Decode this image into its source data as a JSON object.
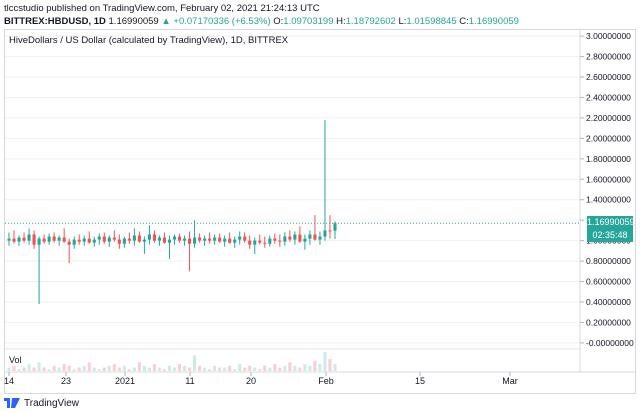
{
  "header": {
    "publish_line": "tlccstudio published on TradingView.com, February 02, 2021 21:24:13 UTC",
    "symbol": "BITTREX:HBDUSD, 1D",
    "last": "1.16990059",
    "change": "+0.07170336 (+6.53%)",
    "o_label": "O:",
    "o": "1.09703199",
    "h_label": "H:",
    "h": "1.18792602",
    "l_label": "L:",
    "l": "1.01598845",
    "c_label": "C:",
    "c": "1.16990059"
  },
  "chart_title": "HiveDollars / US Dollar (calculated by TradingView), 1D, BITTREX",
  "volume_label": "Vol",
  "price_tag": "1.16990059",
  "countdown_tag": "02:35:48",
  "footer": {
    "brand": "TradingView"
  },
  "colors": {
    "up": "#26a69a",
    "down": "#ef5350",
    "grid": "#eef0f3",
    "axis_text": "#131722",
    "vol_up": "#cdebe7",
    "vol_down": "#f8d0cf"
  },
  "chart_data": {
    "type": "candlestick",
    "title": "HiveDollars / US Dollar (calculated by TradingView), 1D, BITTREX",
    "y_axis_ticks": [
      "3.00000000",
      "2.80000000",
      "2.60000000",
      "2.40000000",
      "2.20000000",
      "2.00000000",
      "1.80000000",
      "1.60000000",
      "1.40000000",
      "1.20000000",
      "1.00000000",
      "0.80000000",
      "0.60000000",
      "0.40000000",
      "0.20000000",
      "-0.00000000"
    ],
    "y_tick_values": [
      3.0,
      2.8,
      2.6,
      2.4,
      2.2,
      2.0,
      1.8,
      1.6,
      1.4,
      1.2,
      1.0,
      0.8,
      0.6,
      0.4,
      0.2,
      0.0
    ],
    "x_axis_ticks": [
      "14",
      "23",
      "2021",
      "11",
      "20",
      "Feb",
      "15",
      "Mar"
    ],
    "ylim": [
      -0.05,
      3.05
    ],
    "current_price": 1.1699,
    "candles": [
      {
        "o": 1.0,
        "h": 1.08,
        "l": 0.95,
        "c": 1.02
      },
      {
        "o": 1.02,
        "h": 1.1,
        "l": 0.97,
        "c": 0.99
      },
      {
        "o": 0.99,
        "h": 1.05,
        "l": 0.95,
        "c": 1.03
      },
      {
        "o": 1.03,
        "h": 1.08,
        "l": 0.98,
        "c": 1.0
      },
      {
        "o": 1.0,
        "h": 1.12,
        "l": 0.96,
        "c": 1.06
      },
      {
        "o": 1.06,
        "h": 1.1,
        "l": 0.92,
        "c": 0.96
      },
      {
        "o": 0.96,
        "h": 1.04,
        "l": 0.38,
        "c": 1.02
      },
      {
        "o": 1.02,
        "h": 1.06,
        "l": 0.97,
        "c": 0.99
      },
      {
        "o": 0.99,
        "h": 1.07,
        "l": 0.96,
        "c": 1.04
      },
      {
        "o": 1.04,
        "h": 1.08,
        "l": 0.98,
        "c": 1.0
      },
      {
        "o": 1.0,
        "h": 1.05,
        "l": 0.95,
        "c": 1.03
      },
      {
        "o": 1.03,
        "h": 1.12,
        "l": 0.98,
        "c": 0.99
      },
      {
        "o": 0.99,
        "h": 1.02,
        "l": 0.78,
        "c": 0.96
      },
      {
        "o": 0.96,
        "h": 1.04,
        "l": 0.92,
        "c": 1.01
      },
      {
        "o": 1.01,
        "h": 1.06,
        "l": 0.96,
        "c": 0.99
      },
      {
        "o": 0.99,
        "h": 1.05,
        "l": 0.95,
        "c": 1.02
      },
      {
        "o": 1.02,
        "h": 1.09,
        "l": 0.97,
        "c": 0.98
      },
      {
        "o": 0.98,
        "h": 1.04,
        "l": 0.94,
        "c": 1.01
      },
      {
        "o": 1.01,
        "h": 1.07,
        "l": 0.96,
        "c": 1.04
      },
      {
        "o": 1.04,
        "h": 1.08,
        "l": 0.97,
        "c": 0.99
      },
      {
        "o": 0.99,
        "h": 1.05,
        "l": 0.94,
        "c": 1.03
      },
      {
        "o": 1.03,
        "h": 1.1,
        "l": 0.99,
        "c": 1.01
      },
      {
        "o": 1.01,
        "h": 1.06,
        "l": 0.92,
        "c": 0.97
      },
      {
        "o": 0.97,
        "h": 1.04,
        "l": 0.93,
        "c": 1.02
      },
      {
        "o": 1.02,
        "h": 1.08,
        "l": 0.97,
        "c": 1.0
      },
      {
        "o": 1.0,
        "h": 1.12,
        "l": 0.95,
        "c": 1.05
      },
      {
        "o": 1.05,
        "h": 1.09,
        "l": 0.98,
        "c": 0.99
      },
      {
        "o": 0.99,
        "h": 1.04,
        "l": 0.87,
        "c": 1.01
      },
      {
        "o": 1.01,
        "h": 1.15,
        "l": 0.96,
        "c": 1.06
      },
      {
        "o": 1.06,
        "h": 1.1,
        "l": 0.98,
        "c": 1.0
      },
      {
        "o": 1.0,
        "h": 1.05,
        "l": 0.95,
        "c": 1.03
      },
      {
        "o": 1.03,
        "h": 1.08,
        "l": 0.97,
        "c": 0.98
      },
      {
        "o": 0.98,
        "h": 1.05,
        "l": 0.82,
        "c": 1.01
      },
      {
        "o": 1.01,
        "h": 1.06,
        "l": 0.96,
        "c": 1.04
      },
      {
        "o": 1.04,
        "h": 1.07,
        "l": 0.98,
        "c": 1.0
      },
      {
        "o": 1.0,
        "h": 1.05,
        "l": 0.95,
        "c": 1.02
      },
      {
        "o": 1.02,
        "h": 1.09,
        "l": 0.7,
        "c": 0.97
      },
      {
        "o": 0.97,
        "h": 1.2,
        "l": 0.93,
        "c": 1.03
      },
      {
        "o": 1.03,
        "h": 1.07,
        "l": 0.98,
        "c": 1.0
      },
      {
        "o": 1.0,
        "h": 1.05,
        "l": 0.95,
        "c": 1.02
      },
      {
        "o": 1.02,
        "h": 1.08,
        "l": 0.97,
        "c": 1.0
      },
      {
        "o": 1.0,
        "h": 1.06,
        "l": 0.96,
        "c": 1.03
      },
      {
        "o": 1.03,
        "h": 1.07,
        "l": 0.98,
        "c": 0.99
      },
      {
        "o": 0.99,
        "h": 1.05,
        "l": 0.94,
        "c": 1.02
      },
      {
        "o": 1.02,
        "h": 1.08,
        "l": 0.97,
        "c": 0.98
      },
      {
        "o": 0.98,
        "h": 1.04,
        "l": 0.93,
        "c": 1.01
      },
      {
        "o": 1.01,
        "h": 1.09,
        "l": 0.96,
        "c": 1.04
      },
      {
        "o": 1.04,
        "h": 1.08,
        "l": 0.98,
        "c": 1.0
      },
      {
        "o": 1.0,
        "h": 1.05,
        "l": 0.92,
        "c": 0.96
      },
      {
        "o": 0.96,
        "h": 1.03,
        "l": 0.87,
        "c": 1.0
      },
      {
        "o": 1.0,
        "h": 1.06,
        "l": 0.96,
        "c": 0.98
      },
      {
        "o": 0.98,
        "h": 1.04,
        "l": 0.93,
        "c": 0.97
      },
      {
        "o": 0.97,
        "h": 1.05,
        "l": 0.94,
        "c": 1.02
      },
      {
        "o": 1.02,
        "h": 1.07,
        "l": 0.97,
        "c": 1.0
      },
      {
        "o": 1.0,
        "h": 1.06,
        "l": 0.94,
        "c": 0.99
      },
      {
        "o": 0.99,
        "h": 1.08,
        "l": 0.95,
        "c": 1.04
      },
      {
        "o": 1.04,
        "h": 1.1,
        "l": 0.99,
        "c": 1.01
      },
      {
        "o": 1.01,
        "h": 1.09,
        "l": 0.96,
        "c": 1.06
      },
      {
        "o": 1.06,
        "h": 1.14,
        "l": 0.98,
        "c": 0.99
      },
      {
        "o": 0.99,
        "h": 1.06,
        "l": 0.91,
        "c": 1.02
      },
      {
        "o": 1.02,
        "h": 1.1,
        "l": 0.96,
        "c": 1.06
      },
      {
        "o": 1.06,
        "h": 1.25,
        "l": 1.0,
        "c": 1.01
      },
      {
        "o": 1.01,
        "h": 1.09,
        "l": 0.96,
        "c": 1.04
      },
      {
        "o": 1.04,
        "h": 2.18,
        "l": 1.0,
        "c": 1.1
      },
      {
        "o": 1.1,
        "h": 1.25,
        "l": 1.02,
        "c": 1.09
      },
      {
        "o": 1.097,
        "h": 1.188,
        "l": 1.016,
        "c": 1.17
      }
    ],
    "volume": [
      2,
      3,
      1,
      2,
      4,
      2,
      5,
      2,
      1,
      3,
      2,
      4,
      3,
      1,
      2,
      3,
      5,
      2,
      1,
      2,
      3,
      4,
      2,
      3,
      1,
      2,
      5,
      3,
      2,
      4,
      2,
      1,
      3,
      2,
      4,
      3,
      2,
      9,
      3,
      2,
      1,
      3,
      2,
      2,
      3,
      1,
      4,
      2,
      3,
      2,
      1,
      3,
      2,
      4,
      2,
      3,
      5,
      3,
      2,
      4,
      3,
      6,
      4,
      11,
      7,
      4
    ]
  }
}
